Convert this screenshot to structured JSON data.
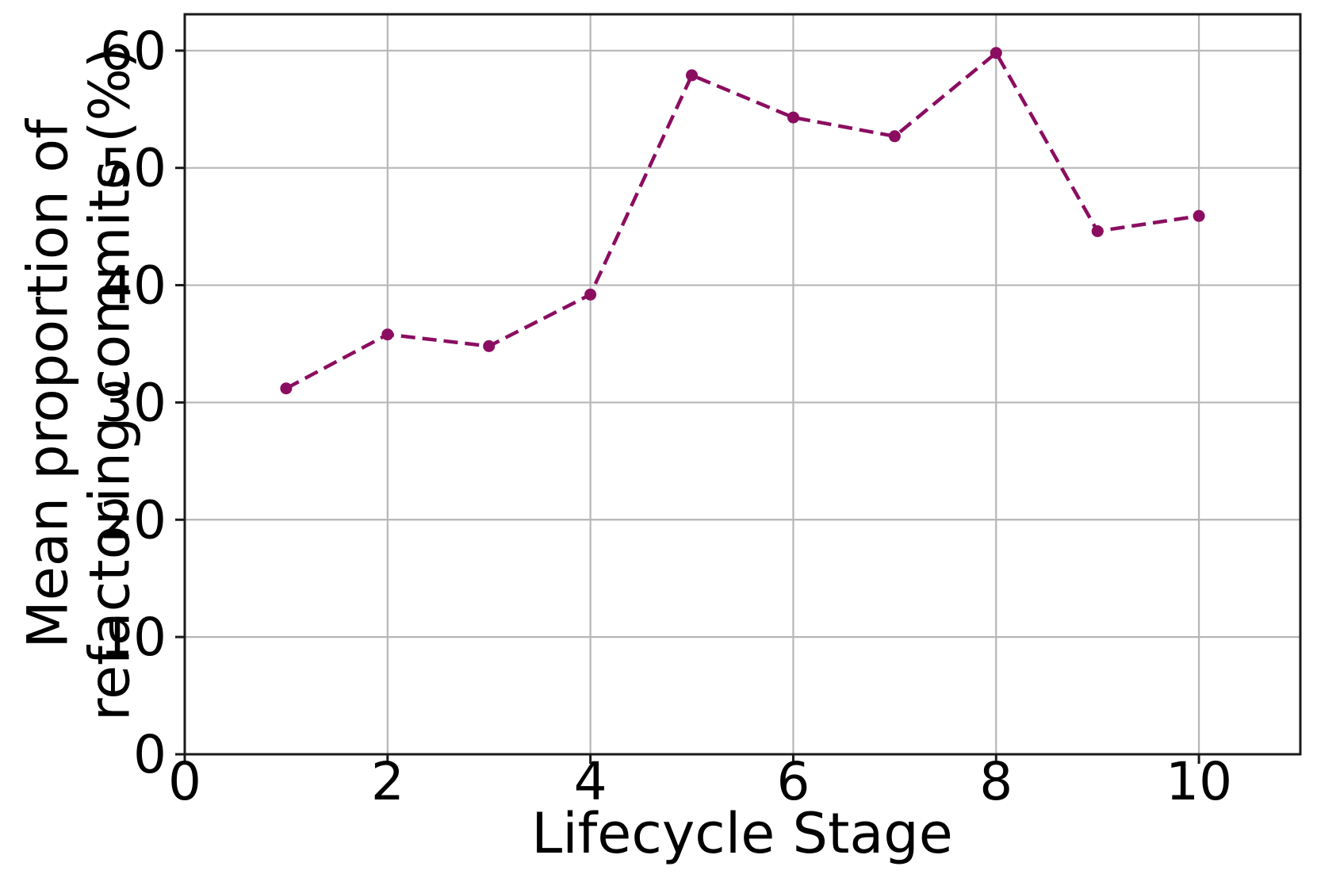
{
  "chart_data": {
    "type": "line",
    "title": "",
    "xlabel": "Lifecycle Stage",
    "ylabel_line1": "Mean proportion of",
    "ylabel_line2": "refactoring commits (%)",
    "series": [
      {
        "name": "Mean proportion of refactoring commits",
        "x": [
          1,
          2,
          3,
          4,
          5,
          6,
          7,
          8,
          9,
          10
        ],
        "y": [
          31.2,
          35.8,
          34.8,
          39.2,
          57.9,
          54.3,
          52.7,
          59.8,
          44.6,
          45.9
        ]
      }
    ],
    "xlim": [
      0,
      11
    ],
    "ylim": [
      0,
      63.1
    ],
    "xticks": [
      0,
      2,
      4,
      6,
      8,
      10
    ],
    "yticks": [
      0,
      10,
      20,
      30,
      40,
      50,
      60
    ],
    "grid": true,
    "legend": "none",
    "line_style": "dashed",
    "marker": "circle",
    "colors": {
      "line": "#8b0d60",
      "marker": "#8b0d60",
      "grid": "#b6b6b6",
      "spine": "#1a1a1a",
      "tick_text": "#000000",
      "background": "#ffffff"
    }
  }
}
